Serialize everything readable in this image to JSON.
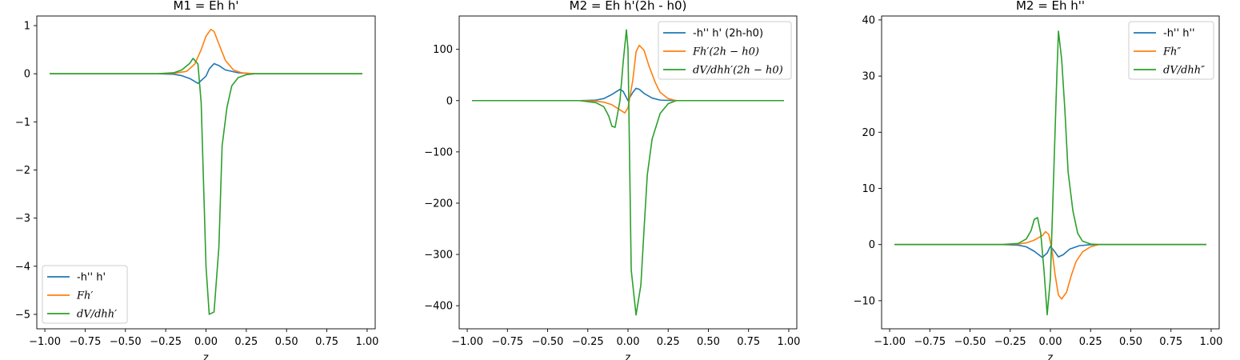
{
  "chart_data": [
    {
      "type": "line",
      "title": "M1 = Eh h'",
      "xlabel": "z",
      "ylabel": "",
      "xlim": [
        -1.05,
        1.05
      ],
      "ylim": [
        -5.3,
        1.2
      ],
      "xticks": [
        -1.0,
        -0.75,
        -0.5,
        -0.25,
        0.0,
        0.25,
        0.5,
        0.75,
        1.0
      ],
      "xtick_labels": [
        "−1.00",
        "−0.75",
        "−0.50",
        "−0.25",
        "0.00",
        "0.25",
        "0.50",
        "0.75",
        "1.00"
      ],
      "yticks": [
        1,
        0,
        -1,
        -2,
        -3,
        -4,
        -5
      ],
      "ytick_labels": [
        "1",
        "0",
        "−1",
        "−2",
        "−3",
        "−4",
        "−5"
      ],
      "legend_position": "lower-left",
      "series": [
        {
          "name": "-h'' h'",
          "color": "#1f77b4",
          "x": [
            -0.97,
            -0.3,
            -0.2,
            -0.15,
            -0.1,
            -0.05,
            0.0,
            0.02,
            0.05,
            0.08,
            0.12,
            0.2,
            0.3,
            0.97
          ],
          "y": [
            0,
            0,
            -0.01,
            -0.04,
            -0.1,
            -0.2,
            -0.05,
            0.1,
            0.21,
            0.17,
            0.08,
            0.02,
            0,
            0
          ]
        },
        {
          "name": "Fh′",
          "color": "#ff7f0e",
          "x": [
            -0.97,
            -0.3,
            -0.2,
            -0.12,
            -0.07,
            -0.03,
            0.0,
            0.03,
            0.05,
            0.08,
            0.12,
            0.17,
            0.22,
            0.3,
            0.97
          ],
          "y": [
            0,
            0,
            0.01,
            0.05,
            0.2,
            0.5,
            0.78,
            0.92,
            0.88,
            0.62,
            0.28,
            0.08,
            0.02,
            0,
            0
          ]
        },
        {
          "name": "dV/dhh′",
          "color": "#2ca02c",
          "x": [
            -0.97,
            -0.3,
            -0.2,
            -0.15,
            -0.1,
            -0.08,
            -0.05,
            -0.03,
            0.0,
            0.02,
            0.05,
            0.08,
            0.1,
            0.13,
            0.16,
            0.2,
            0.25,
            0.3,
            0.97
          ],
          "y": [
            0,
            0,
            0.02,
            0.08,
            0.22,
            0.32,
            0.2,
            -0.6,
            -4.0,
            -5.0,
            -4.95,
            -3.6,
            -1.5,
            -0.7,
            -0.25,
            -0.08,
            -0.02,
            0,
            0
          ]
        }
      ]
    },
    {
      "type": "line",
      "title": "M2 = Eh h'(2h - h0)",
      "xlabel": "z",
      "ylabel": "",
      "xlim": [
        -1.05,
        1.05
      ],
      "ylim": [
        -445,
        165
      ],
      "xticks": [
        -1.0,
        -0.75,
        -0.5,
        -0.25,
        0.0,
        0.25,
        0.5,
        0.75,
        1.0
      ],
      "xtick_labels": [
        "−1.00",
        "−0.75",
        "−0.50",
        "−0.25",
        "0.00",
        "0.25",
        "0.50",
        "0.75",
        "1.00"
      ],
      "yticks": [
        100,
        0,
        -100,
        -200,
        -300,
        -400
      ],
      "ytick_labels": [
        "100",
        "0",
        "−100",
        "−200",
        "−300",
        "−400"
      ],
      "legend_position": "upper-right",
      "series": [
        {
          "name": "-h'' h' (2h-h0)",
          "color": "#1f77b4",
          "x": [
            -0.97,
            -0.3,
            -0.2,
            -0.15,
            -0.1,
            -0.05,
            -0.03,
            0.0,
            0.03,
            0.05,
            0.07,
            0.1,
            0.15,
            0.2,
            0.3,
            0.97
          ],
          "y": [
            0,
            0,
            1,
            4,
            12,
            22,
            18,
            0,
            16,
            24,
            22,
            14,
            5,
            1,
            0,
            0
          ]
        },
        {
          "name": "Fh′(2h − h0)",
          "color": "#ff7f0e",
          "x": [
            -0.97,
            -0.3,
            -0.2,
            -0.15,
            -0.1,
            -0.05,
            -0.02,
            0.0,
            0.03,
            0.05,
            0.07,
            0.1,
            0.13,
            0.17,
            0.2,
            0.25,
            0.3,
            0.97
          ],
          "y": [
            0,
            0,
            -1,
            -3,
            -8,
            -18,
            -24,
            -14,
            40,
            95,
            108,
            98,
            68,
            35,
            16,
            4,
            0,
            0
          ]
        },
        {
          "name": "dV/dhh′(2h − h0)",
          "color": "#2ca02c",
          "x": [
            -0.97,
            -0.3,
            -0.2,
            -0.15,
            -0.12,
            -0.1,
            -0.08,
            -0.05,
            -0.03,
            -0.01,
            0.0,
            0.02,
            0.05,
            0.08,
            0.1,
            0.12,
            0.15,
            0.2,
            0.25,
            0.3,
            0.97
          ],
          "y": [
            0,
            0,
            -4,
            -12,
            -30,
            -50,
            -52,
            0,
            75,
            138,
            100,
            -330,
            -418,
            -360,
            -250,
            -145,
            -75,
            -25,
            -6,
            0,
            0
          ]
        }
      ]
    },
    {
      "type": "line",
      "title": "M2 = Eh h''",
      "xlabel": "z",
      "ylabel": "",
      "xlim": [
        -1.05,
        1.05
      ],
      "ylim": [
        -15,
        40.7
      ],
      "xticks": [
        -1.0,
        -0.75,
        -0.5,
        -0.25,
        0.0,
        0.25,
        0.5,
        0.75,
        1.0
      ],
      "xtick_labels": [
        "−1.00",
        "−0.75",
        "−0.50",
        "−0.25",
        "0.00",
        "0.25",
        "0.50",
        "0.75",
        "1.00"
      ],
      "yticks": [
        40,
        30,
        20,
        10,
        0,
        -10
      ],
      "ytick_labels": [
        "40",
        "30",
        "20",
        "10",
        "0",
        "−10"
      ],
      "legend_position": "upper-right",
      "series": [
        {
          "name": "-h'' h''",
          "color": "#1f77b4",
          "x": [
            -0.97,
            -0.3,
            -0.2,
            -0.15,
            -0.1,
            -0.05,
            -0.02,
            0.0,
            0.02,
            0.05,
            0.08,
            0.12,
            0.18,
            0.25,
            0.3,
            0.97
          ],
          "y": [
            0,
            0,
            -0.1,
            -0.4,
            -1.2,
            -2.3,
            -1.5,
            -0.3,
            -1.0,
            -2.2,
            -1.8,
            -0.8,
            -0.2,
            -0.02,
            0,
            0
          ]
        },
        {
          "name": "Fh″",
          "color": "#ff7f0e",
          "x": [
            -0.97,
            -0.3,
            -0.2,
            -0.15,
            -0.1,
            -0.05,
            -0.03,
            -0.01,
            0.01,
            0.03,
            0.05,
            0.07,
            0.1,
            0.13,
            0.16,
            0.2,
            0.25,
            0.3,
            0.97
          ],
          "y": [
            0,
            0,
            0.1,
            0.3,
            0.8,
            1.6,
            2.3,
            1.8,
            -1.0,
            -5.5,
            -9.0,
            -9.7,
            -8.5,
            -5.5,
            -3.0,
            -1.3,
            -0.4,
            0,
            0
          ]
        },
        {
          "name": "dV/dhh″",
          "color": "#2ca02c",
          "x": [
            -0.97,
            -0.3,
            -0.2,
            -0.15,
            -0.12,
            -0.1,
            -0.08,
            -0.06,
            -0.04,
            -0.02,
            0.0,
            0.02,
            0.04,
            0.05,
            0.07,
            0.09,
            0.11,
            0.14,
            0.17,
            0.2,
            0.25,
            0.3,
            0.97
          ],
          "y": [
            0,
            0,
            0.2,
            1.0,
            2.5,
            4.5,
            4.8,
            2.0,
            -4.5,
            -12.5,
            -6.0,
            12.0,
            30.0,
            38.0,
            33.0,
            24.0,
            13.0,
            6.0,
            2.0,
            0.6,
            0.1,
            0,
            0
          ]
        }
      ]
    }
  ]
}
